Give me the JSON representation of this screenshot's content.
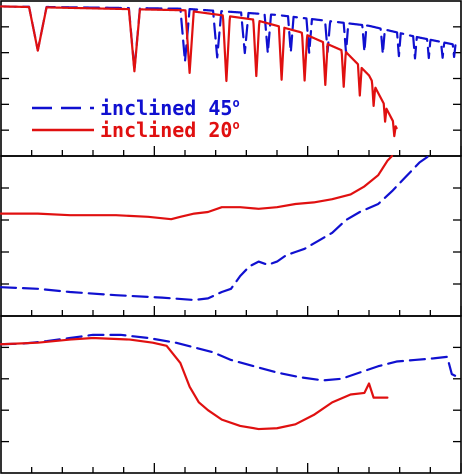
{
  "chart_data": [
    {
      "type": "line",
      "panel": "top",
      "xlim": [
        0,
        100
      ],
      "ylim": [
        0,
        10
      ],
      "legend": "bottom-left",
      "series": [
        {
          "name": "inclined 45",
          "name_sup": "o",
          "color": "#1010d0",
          "style": "dashed",
          "decay": [
            [
              0,
              0.35
            ],
            [
              40,
              0.5
            ],
            [
              60,
              0.9
            ],
            [
              80,
              1.6
            ],
            [
              90,
              2.3
            ],
            [
              100,
              2.9
            ]
          ],
          "minima": [
            {
              "x": 8,
              "d": 2.8,
              "w": 1.9
            },
            {
              "x": 29,
              "d": 4.0,
              "w": 1.2
            },
            {
              "x": 40,
              "d": 3.4,
              "w": 1.0
            },
            {
              "x": 47,
              "d": 3.0,
              "w": 0.9
            },
            {
              "x": 53,
              "d": 2.6,
              "w": 0.8
            },
            {
              "x": 58,
              "d": 2.5,
              "w": 0.7
            },
            {
              "x": 63,
              "d": 2.3,
              "w": 0.6
            },
            {
              "x": 67,
              "d": 2.2,
              "w": 0.6
            },
            {
              "x": 71,
              "d": 2.0,
              "w": 0.55
            },
            {
              "x": 75,
              "d": 1.9,
              "w": 0.5
            },
            {
              "x": 79,
              "d": 1.7,
              "w": 0.45
            },
            {
              "x": 83,
              "d": 1.6,
              "w": 0.45
            },
            {
              "x": 86.5,
              "d": 1.5,
              "w": 0.4
            },
            {
              "x": 90,
              "d": 1.4,
              "w": 0.4
            },
            {
              "x": 93,
              "d": 1.2,
              "w": 0.35
            },
            {
              "x": 96,
              "d": 1.0,
              "w": 0.35
            },
            {
              "x": 98.5,
              "d": 0.8,
              "w": 0.3
            }
          ]
        },
        {
          "name": "inclined 20",
          "name_sup": "o",
          "color": "#e01010",
          "style": "solid",
          "xmax": 86,
          "decay": [
            [
              0,
              0.35
            ],
            [
              40,
              0.6
            ],
            [
              55,
              1.2
            ],
            [
              65,
              2.0
            ],
            [
              75,
              3.3
            ],
            [
              80,
              4.8
            ],
            [
              83,
              6.5
            ],
            [
              86,
              8.2
            ]
          ],
          "minima": [
            {
              "x": 8,
              "d": 2.8,
              "w": 1.9
            },
            {
              "x": 29,
              "d": 4.0,
              "w": 1.2
            },
            {
              "x": 41,
              "d": 4.0,
              "w": 0.9
            },
            {
              "x": 49,
              "d": 4.2,
              "w": 0.75
            },
            {
              "x": 55.5,
              "d": 3.6,
              "w": 0.65
            },
            {
              "x": 61,
              "d": 3.4,
              "w": 0.6
            },
            {
              "x": 66,
              "d": 3.0,
              "w": 0.55
            },
            {
              "x": 70.5,
              "d": 2.7,
              "w": 0.5
            },
            {
              "x": 74.5,
              "d": 2.3,
              "w": 0.45
            },
            {
              "x": 78,
              "d": 1.9,
              "w": 0.4
            },
            {
              "x": 81,
              "d": 1.4,
              "w": 0.35
            },
            {
              "x": 83.5,
              "d": 1.0,
              "w": 0.3
            },
            {
              "x": 85.5,
              "d": 0.8,
              "w": 0.3
            }
          ]
        }
      ]
    },
    {
      "type": "line",
      "panel": "middle",
      "xlim": [
        0,
        100
      ],
      "ylim": [
        0,
        10
      ],
      "series": [
        {
          "name": "inclined 45",
          "color": "#1010d0",
          "style": "dashed",
          "points": [
            [
              0,
              8.2
            ],
            [
              8,
              8.3
            ],
            [
              15,
              8.5
            ],
            [
              25,
              8.7
            ],
            [
              35,
              8.85
            ],
            [
              42,
              9.0
            ],
            [
              45,
              8.9
            ],
            [
              48,
              8.5
            ],
            [
              50,
              8.3
            ],
            [
              52,
              7.5
            ],
            [
              54,
              6.9
            ],
            [
              56,
              6.6
            ],
            [
              58,
              6.8
            ],
            [
              60,
              6.6
            ],
            [
              62,
              6.2
            ],
            [
              64,
              6.0
            ],
            [
              66,
              5.8
            ],
            [
              69,
              5.3
            ],
            [
              72,
              4.8
            ],
            [
              75,
              4.0
            ],
            [
              78,
              3.5
            ],
            [
              82,
              3.0
            ],
            [
              85,
              2.2
            ],
            [
              88,
              1.3
            ],
            [
              91,
              0.4
            ],
            [
              93,
              0
            ]
          ]
        },
        {
          "name": "inclined 20",
          "color": "#e01010",
          "style": "solid",
          "points": [
            [
              0,
              3.6
            ],
            [
              8,
              3.6
            ],
            [
              15,
              3.7
            ],
            [
              25,
              3.7
            ],
            [
              32,
              3.8
            ],
            [
              37,
              3.95
            ],
            [
              39,
              3.8
            ],
            [
              42,
              3.6
            ],
            [
              45,
              3.5
            ],
            [
              48,
              3.2
            ],
            [
              52,
              3.2
            ],
            [
              56,
              3.3
            ],
            [
              60,
              3.2
            ],
            [
              64,
              3.0
            ],
            [
              68,
              2.9
            ],
            [
              72,
              2.7
            ],
            [
              76,
              2.4
            ],
            [
              79,
              1.9
            ],
            [
              82,
              1.2
            ],
            [
              84,
              0.3
            ],
            [
              85,
              0
            ]
          ]
        }
      ]
    },
    {
      "type": "line",
      "panel": "bottom",
      "xlim": [
        0,
        100
      ],
      "ylim": [
        0,
        10
      ],
      "series": [
        {
          "name": "inclined 45",
          "color": "#1010d0",
          "style": "dashed",
          "points": [
            [
              0,
              1.8
            ],
            [
              5,
              1.75
            ],
            [
              10,
              1.6
            ],
            [
              15,
              1.4
            ],
            [
              20,
              1.2
            ],
            [
              26,
              1.2
            ],
            [
              32,
              1.4
            ],
            [
              38,
              1.7
            ],
            [
              42,
              2.0
            ],
            [
              46,
              2.3
            ],
            [
              50,
              2.8
            ],
            [
              55,
              3.2
            ],
            [
              60,
              3.6
            ],
            [
              65,
              3.9
            ],
            [
              70,
              4.1
            ],
            [
              74,
              4.0
            ],
            [
              78,
              3.6
            ],
            [
              82,
              3.2
            ],
            [
              86,
              2.9
            ],
            [
              90,
              2.8
            ],
            [
              94,
              2.7
            ],
            [
              97,
              2.6
            ],
            [
              98,
              3.7
            ],
            [
              100,
              4.0
            ]
          ]
        },
        {
          "name": "inclined 20",
          "color": "#e01010",
          "style": "solid",
          "points": [
            [
              0,
              1.8
            ],
            [
              8,
              1.7
            ],
            [
              15,
              1.5
            ],
            [
              20,
              1.4
            ],
            [
              28,
              1.5
            ],
            [
              33,
              1.7
            ],
            [
              36,
              1.9
            ],
            [
              39,
              3.0
            ],
            [
              41,
              4.5
            ],
            [
              43,
              5.5
            ],
            [
              45,
              6.0
            ],
            [
              48,
              6.6
            ],
            [
              52,
              7.0
            ],
            [
              56,
              7.2
            ],
            [
              60,
              7.15
            ],
            [
              64,
              6.9
            ],
            [
              68,
              6.3
            ],
            [
              72,
              5.5
            ],
            [
              76,
              5.0
            ],
            [
              79,
              4.9
            ],
            [
              80,
              4.3
            ],
            [
              81,
              5.2
            ],
            [
              84,
              5.2
            ]
          ]
        }
      ]
    }
  ]
}
